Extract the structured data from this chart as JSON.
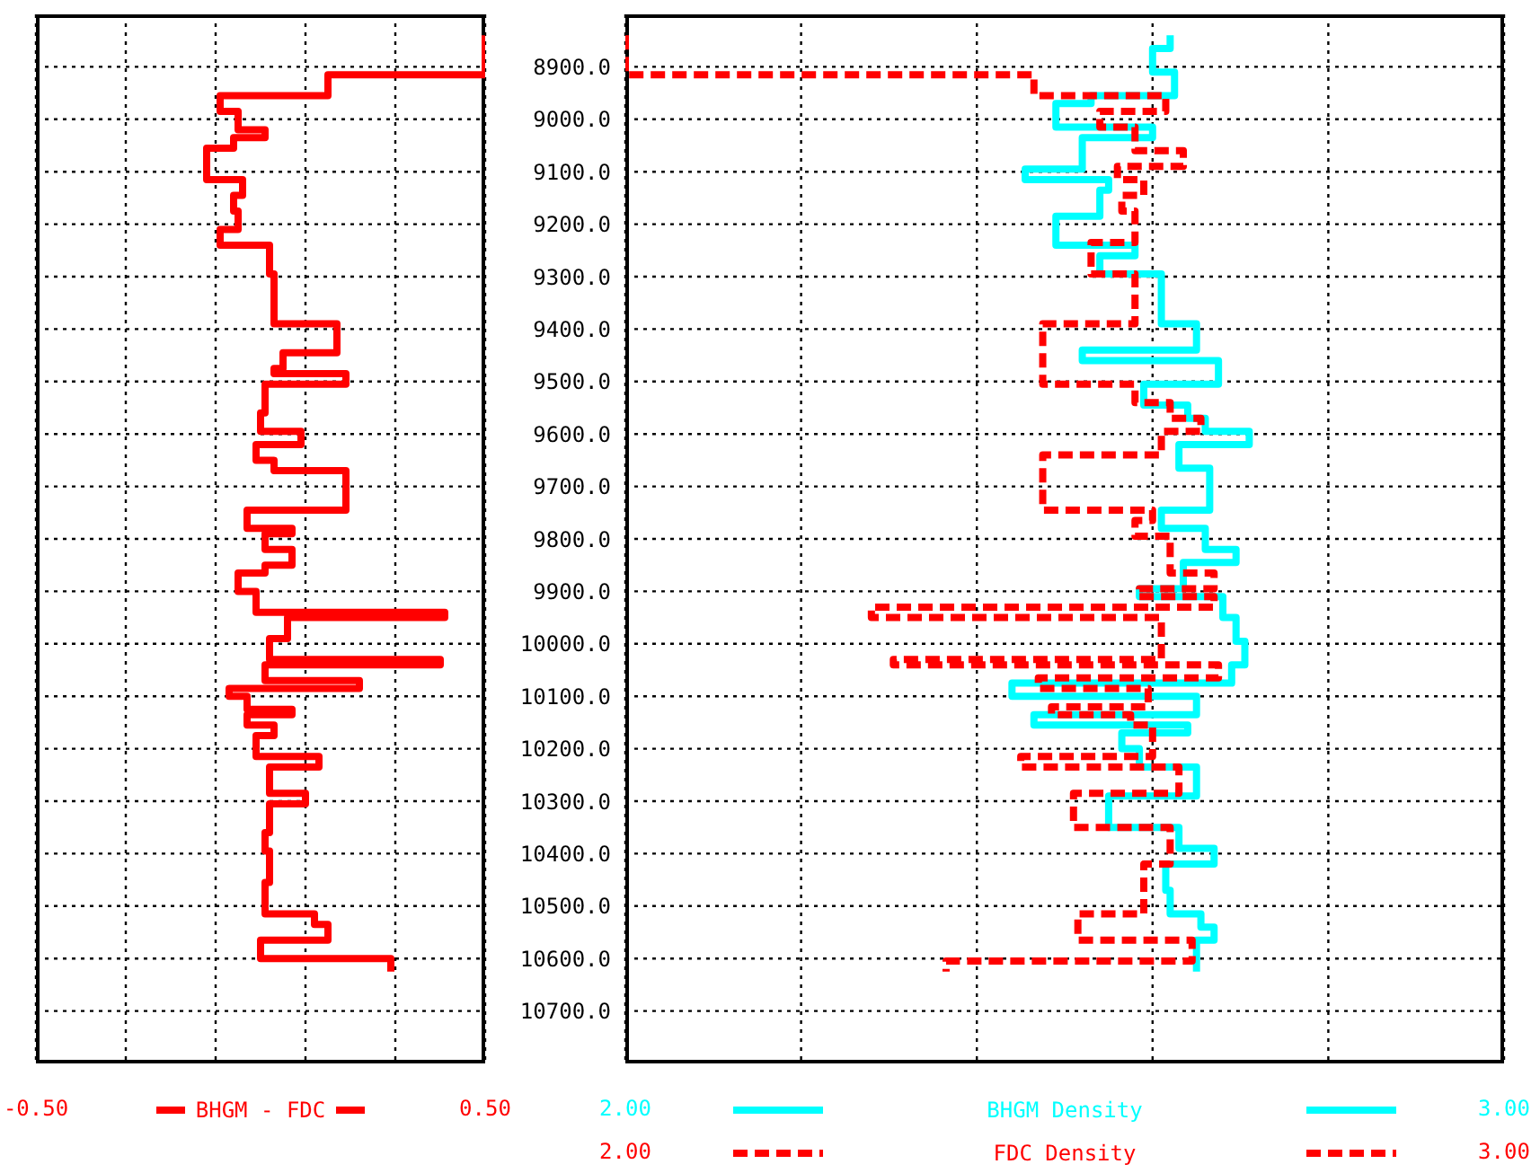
{
  "chart_data": [
    {
      "type": "step",
      "orientation": "horizontal",
      "xlim": [
        -0.5,
        0.5
      ],
      "ylim": [
        10800,
        8800
      ],
      "xticks": [
        {
          "value": -0.5,
          "label": "-0.50"
        },
        {
          "value": -0.3,
          "label": null
        },
        {
          "value": -0.1,
          "label": null
        },
        {
          "value": 0.1,
          "label": null
        },
        {
          "value": 0.3,
          "label": null
        },
        {
          "value": 0.5,
          "label": "0.50"
        }
      ],
      "yticks": [
        8900,
        9000,
        9100,
        9200,
        9300,
        9400,
        9500,
        9600,
        9700,
        9800,
        9900,
        10000,
        10100,
        10200,
        10300,
        10400,
        10500,
        10600,
        10700
      ],
      "tick_labels": "x",
      "grid": true,
      "legend": "bottom",
      "series": [
        {
          "name": "BHGM - FDC",
          "color": "#ff0000",
          "line_style": "solid",
          "values": [
            0.5,
            0.15,
            -0.09,
            -0.05,
            0.01,
            -0.06,
            -0.12,
            -0.04,
            -0.06,
            -0.05,
            -0.09,
            0.02,
            0.03,
            0.17,
            0.05,
            0.03,
            0.19,
            0.01,
            0.0,
            0.09,
            -0.01,
            0.03,
            0.19,
            -0.03,
            0.07,
            0.01,
            0.07,
            0.01,
            -0.05,
            -0.01,
            0.41,
            0.06,
            0.02,
            0.4,
            0.01,
            0.22,
            -0.07,
            -0.03,
            0.07,
            -0.03,
            0.03,
            -0.01,
            0.13,
            0.02,
            0.1,
            0.02,
            0.01,
            0.02,
            0.01,
            0.12,
            0.15,
            0.0,
            0.29,
            0.29
          ],
          "x": [
            8840,
            8915,
            8955,
            8985,
            9020,
            9035,
            9055,
            9115,
            9145,
            9175,
            9210,
            9240,
            9295,
            9390,
            9445,
            9475,
            9485,
            9505,
            9560,
            9595,
            9620,
            9650,
            9670,
            9745,
            9780,
            9790,
            9820,
            9850,
            9865,
            9900,
            9940,
            9950,
            9990,
            10030,
            10040,
            10070,
            10085,
            10100,
            10125,
            10135,
            10155,
            10175,
            10215,
            10235,
            10285,
            10305,
            10360,
            10395,
            10455,
            10515,
            10535,
            10565,
            10600,
            10625
          ]
        }
      ]
    },
    {
      "type": "step",
      "orientation": "horizontal",
      "xlim": [
        2,
        3
      ],
      "ylim": [
        10800,
        8800
      ],
      "xticks": [
        {
          "value": 2,
          "label": "2.00"
        },
        {
          "value": 2.2,
          "label": null
        },
        {
          "value": 2.4,
          "label": null
        },
        {
          "value": 2.6,
          "label": null
        },
        {
          "value": 2.8,
          "label": null
        },
        {
          "value": 3,
          "label": "3.00"
        }
      ],
      "yticks": [
        {
          "value": 8900,
          "label": "8900.0"
        },
        {
          "value": 9000,
          "label": "9000.0"
        },
        {
          "value": 9100,
          "label": "9100.0"
        },
        {
          "value": 9200,
          "label": "9200.0"
        },
        {
          "value": 9300,
          "label": "9300.0"
        },
        {
          "value": 9400,
          "label": "9400.0"
        },
        {
          "value": 9500,
          "label": "9500.0"
        },
        {
          "value": 9600,
          "label": "9600.0"
        },
        {
          "value": 9700,
          "label": "9700.0"
        },
        {
          "value": 9800,
          "label": "9800.0"
        },
        {
          "value": 9900,
          "label": "9900.0"
        },
        {
          "value": 10000,
          "label": "10000.0"
        },
        {
          "value": 10100,
          "label": "10100.0"
        },
        {
          "value": 10200,
          "label": "10200.0"
        },
        {
          "value": 10300,
          "label": "10300.0"
        },
        {
          "value": 10400,
          "label": "10400.0"
        },
        {
          "value": 10500,
          "label": "10500.0"
        },
        {
          "value": 10600,
          "label": "10600.0"
        },
        {
          "value": 10700,
          "label": "10700.0"
        }
      ],
      "grid": true,
      "legend": "bottom",
      "series": [
        {
          "name": "BHGM Density",
          "color": "#00ffff",
          "line_style": "solid",
          "values": [
            2.62,
            2.6,
            2.625,
            2.53,
            2.49,
            2.6,
            2.52,
            2.455,
            2.55,
            2.54,
            2.49,
            2.58,
            2.54,
            2.61,
            2.65,
            2.52,
            2.675,
            2.59,
            2.64,
            2.66,
            2.71,
            2.63,
            2.665,
            2.61,
            2.66,
            2.695,
            2.635,
            2.585,
            2.68,
            2.695,
            2.705,
            2.69,
            2.44,
            2.65,
            2.465,
            2.64,
            2.565,
            2.585,
            2.65,
            2.55,
            2.63,
            2.67,
            2.615,
            2.62,
            2.655,
            2.67,
            2.65,
            2.65
          ],
          "x": [
            8840,
            8865,
            8910,
            8955,
            8970,
            9015,
            9035,
            9095,
            9115,
            9135,
            9185,
            9240,
            9260,
            9295,
            9390,
            9440,
            9460,
            9505,
            9545,
            9570,
            9595,
            9620,
            9665,
            9745,
            9780,
            9820,
            9845,
            9895,
            9910,
            9950,
            9995,
            10040,
            10075,
            10100,
            10135,
            10155,
            10170,
            10200,
            10235,
            10290,
            10350,
            10390,
            10420,
            10470,
            10515,
            10540,
            10565,
            10625
          ]
        },
        {
          "name": "FDC Density",
          "color": "#ff0000",
          "line_style": "dashed",
          "values": [
            2.0,
            2.465,
            2.615,
            2.54,
            2.58,
            2.635,
            2.56,
            2.59,
            2.565,
            2.58,
            2.53,
            2.58,
            2.475,
            2.58,
            2.62,
            2.655,
            2.61,
            2.475,
            2.6,
            2.58,
            2.62,
            2.67,
            2.585,
            2.67,
            2.28,
            2.61,
            2.305,
            2.675,
            2.47,
            2.595,
            2.485,
            2.575,
            2.6,
            2.45,
            2.63,
            2.51,
            2.62,
            2.59,
            2.515,
            2.645,
            2.365,
            2.365
          ],
          "x": [
            8840,
            8915,
            8955,
            8985,
            9015,
            9060,
            9090,
            9115,
            9145,
            9175,
            9235,
            9295,
            9390,
            9505,
            9540,
            9570,
            9595,
            9640,
            9745,
            9765,
            9795,
            9865,
            9895,
            9910,
            9930,
            9950,
            10030,
            10040,
            10065,
            10085,
            10120,
            10135,
            10155,
            10215,
            10235,
            10285,
            10350,
            10420,
            10515,
            10565,
            10605,
            10625
          ]
        }
      ]
    }
  ]
}
